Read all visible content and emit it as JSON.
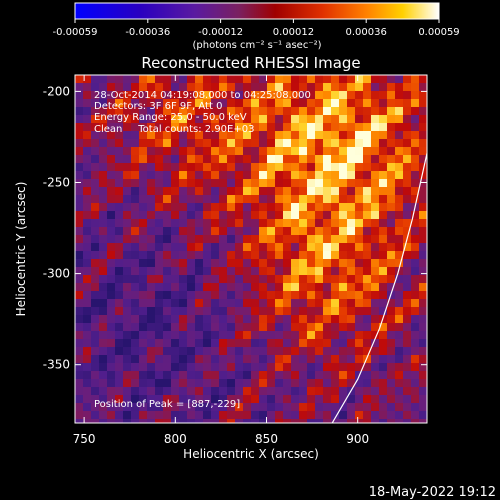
{
  "colorbar": {
    "ticks": [
      "-0.00059",
      "-0.00036",
      "-0.00012",
      "0.00012",
      "0.00036",
      "0.00059"
    ],
    "units": "(photons cm⁻² s⁻¹ asec⁻²)",
    "min": -0.00059,
    "max": 0.00059
  },
  "footer": {
    "timestamp": "18-May-2022 19:12"
  },
  "chart_data": {
    "type": "heatmap",
    "title": "Reconstructed RHESSI Image",
    "xlabel": "Heliocentric X (arcsec)",
    "ylabel": "Heliocentric Y (arcsec)",
    "xlim": [
      745,
      938
    ],
    "ylim": [
      -382,
      -191
    ],
    "xticks": [
      "750",
      "800",
      "850",
      "900"
    ],
    "yticks": [
      "-200",
      "-250",
      "-300",
      "-350"
    ],
    "xtick_values": [
      750,
      800,
      850,
      900
    ],
    "ytick_values": [
      -200,
      -250,
      -300,
      -350
    ],
    "annotations": [
      "28-Oct-2014 04:19:08.000 to 04:25:08.000",
      "Detectors: 3F 6F 9F, Att 0",
      "Energy Range: 25.0 - 50.0 keV",
      "Clean     Total counts: 2.90E+03"
    ],
    "peak_label": "Position of Peak = [887,-229]",
    "peak": [
      887,
      -229
    ],
    "limb_curve": [
      [
        886,
        -382
      ],
      [
        900,
        -358
      ],
      [
        912,
        -330
      ],
      [
        922,
        -300
      ],
      [
        930,
        -270
      ],
      [
        938,
        -234
      ]
    ]
  }
}
